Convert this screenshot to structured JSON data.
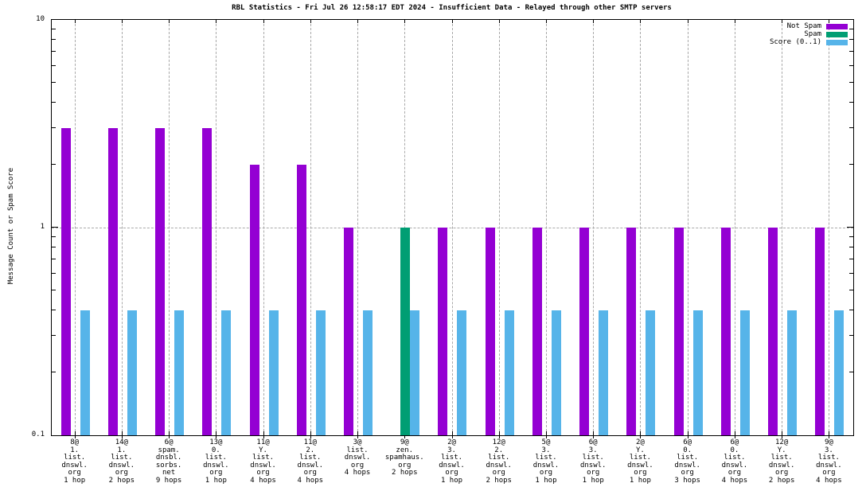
{
  "chart_data": {
    "type": "bar",
    "title": "RBL Statistics - Fri Jul 26 12:58:17 EDT 2024 - Insufficient Data - Relayed through other SMTP servers",
    "ylabel": "Message Count or Spam Score",
    "y_scale": "log",
    "ylim": [
      0.1,
      10
    ],
    "ytick_labels": [
      "10",
      "1",
      "0.1"
    ],
    "grid": {
      "h_dashed_line_at": 1,
      "v_dashed_line_per_category": true
    },
    "legend_position": "top-right-inside",
    "legend": [
      {
        "name": "Not Spam",
        "color": "#9400d3"
      },
      {
        "name": "Spam",
        "color": "#009e73"
      },
      {
        "name": "Score (0..1)",
        "color": "#56b4e9"
      }
    ],
    "categories": [
      [
        "8@",
        "1.",
        "list.",
        "dnswl.",
        "org",
        "1 hop"
      ],
      [
        "14@",
        "1.",
        "list.",
        "dnswl.",
        "org",
        "2 hops"
      ],
      [
        "6@",
        "spam.",
        "dnsbl.",
        "sorbs.",
        "net",
        "9 hops"
      ],
      [
        "13@",
        "0.",
        "list.",
        "dnswl.",
        "org",
        "1 hop"
      ],
      [
        "11@",
        "Y.",
        "list.",
        "dnswl.",
        "org",
        "4 hops"
      ],
      [
        "11@",
        "2.",
        "list.",
        "dnswl.",
        "org",
        "4 hops"
      ],
      [
        "3@",
        "list.",
        "dnswl.",
        "org",
        "4 hops"
      ],
      [
        "9@",
        "zen.",
        "spamhaus.",
        "org",
        "2 hops"
      ],
      [
        "2@",
        "3.",
        "list.",
        "dnswl.",
        "org",
        "1 hop"
      ],
      [
        "12@",
        "2.",
        "list.",
        "dnswl.",
        "org",
        "2 hops"
      ],
      [
        "5@",
        "3.",
        "list.",
        "dnswl.",
        "org",
        "1 hop"
      ],
      [
        "6@",
        "3.",
        "list.",
        "dnswl.",
        "org",
        "1 hop"
      ],
      [
        "2@",
        "Y.",
        "list.",
        "dnswl.",
        "org",
        "1 hop"
      ],
      [
        "6@",
        "0.",
        "list.",
        "dnswl.",
        "org",
        "3 hops"
      ],
      [
        "6@",
        "0.",
        "list.",
        "dnswl.",
        "org",
        "4 hops"
      ],
      [
        "12@",
        "Y.",
        "list.",
        "dnswl.",
        "org",
        "2 hops"
      ],
      [
        "9@",
        "3.",
        "list.",
        "dnswl.",
        "org",
        "4 hops"
      ]
    ],
    "series": [
      {
        "name": "Not Spam",
        "color": "#9400d3",
        "values": [
          3,
          3,
          3,
          3,
          2,
          2,
          1,
          null,
          1,
          1,
          1,
          1,
          1,
          1,
          1,
          1,
          1
        ]
      },
      {
        "name": "Spam",
        "color": "#009e73",
        "values": [
          null,
          null,
          null,
          null,
          null,
          null,
          null,
          1,
          null,
          null,
          null,
          null,
          null,
          null,
          null,
          null,
          null
        ]
      },
      {
        "name": "Score (0..1)",
        "color": "#56b4e9",
        "values": [
          0.4,
          0.4,
          0.4,
          0.4,
          0.4,
          0.4,
          0.4,
          0.4,
          0.4,
          0.4,
          0.4,
          0.4,
          0.4,
          0.4,
          0.4,
          0.4,
          0.4
        ]
      }
    ],
    "colors": {
      "grid": "#a9a9a9",
      "axis": "#000000",
      "background": "#ffffff"
    }
  }
}
